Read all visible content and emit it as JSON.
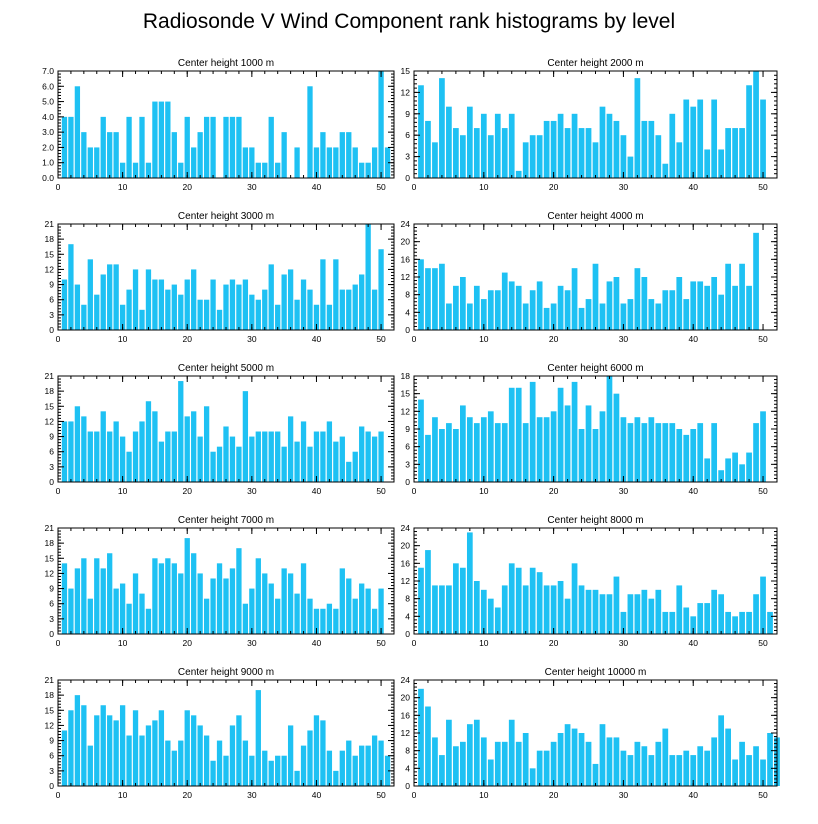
{
  "title": "Radiosonde V Wind Component rank histograms by level",
  "colors": {
    "bar": "#1ec1f3",
    "axis": "#000000",
    "background": "#ffffff"
  },
  "chart_data": [
    {
      "type": "bar",
      "title": "Center height 1000 m",
      "xlim": [
        0,
        52
      ],
      "ylim": [
        0,
        7
      ],
      "xticks": [
        0,
        10,
        20,
        30,
        40,
        50
      ],
      "yticks": [
        0,
        1,
        2,
        3,
        4,
        5,
        6,
        7
      ],
      "ytick_labels": [
        "0.0",
        "1.0",
        "2.0",
        "3.0",
        "4.0",
        "5.0",
        "6.0",
        "7.0"
      ],
      "values": [
        4,
        4,
        6,
        3,
        2,
        2,
        4,
        3,
        3,
        1,
        4,
        1,
        4,
        1,
        5,
        5,
        5,
        3,
        1,
        4,
        2,
        3,
        4,
        4,
        0,
        4,
        4,
        4,
        2,
        2,
        1,
        1,
        4,
        1,
        3,
        0,
        2,
        0,
        6,
        2,
        3,
        2,
        2,
        3,
        3,
        2,
        1,
        1,
        2,
        7,
        2
      ]
    },
    {
      "type": "bar",
      "title": "Center height 2000 m",
      "xlim": [
        0,
        52
      ],
      "ylim": [
        0,
        15
      ],
      "xticks": [
        0,
        10,
        20,
        30,
        40,
        50
      ],
      "yticks": [
        0,
        3,
        6,
        9,
        12,
        15
      ],
      "ytick_labels": [
        "0",
        "3",
        "6",
        "9",
        "12",
        "15"
      ],
      "values": [
        13,
        8,
        5,
        14,
        10,
        7,
        6,
        10,
        7,
        9,
        6,
        9,
        7,
        9,
        1,
        5,
        6,
        6,
        8,
        8,
        9,
        7,
        9,
        7,
        7,
        5,
        10,
        9,
        8,
        6,
        3,
        14,
        8,
        8,
        6,
        2,
        9,
        5,
        11,
        10,
        11,
        4,
        11,
        4,
        7,
        7,
        7,
        13,
        15,
        11,
        0
      ]
    },
    {
      "type": "bar",
      "title": "Center height 3000 m",
      "xlim": [
        0,
        52
      ],
      "ylim": [
        0,
        21
      ],
      "xticks": [
        0,
        10,
        20,
        30,
        40,
        50
      ],
      "yticks": [
        0,
        3,
        6,
        9,
        12,
        15,
        18,
        21
      ],
      "ytick_labels": [
        "0",
        "3",
        "6",
        "9",
        "12",
        "15",
        "18",
        "21"
      ],
      "values": [
        10,
        17,
        9,
        5,
        14,
        7,
        11,
        13,
        13,
        5,
        8,
        12,
        4,
        12,
        10,
        10,
        8,
        9,
        7,
        10,
        12,
        6,
        6,
        10,
        4,
        9,
        10,
        9,
        10,
        7,
        6,
        8,
        13,
        5,
        11,
        12,
        6,
        10,
        8,
        5,
        14,
        5,
        14,
        8,
        8,
        9,
        11,
        21,
        8,
        16,
        0
      ]
    },
    {
      "type": "bar",
      "title": "Center height 4000 m",
      "xlim": [
        0,
        52
      ],
      "ylim": [
        0,
        24
      ],
      "xticks": [
        0,
        10,
        20,
        30,
        40,
        50
      ],
      "yticks": [
        0,
        4,
        8,
        12,
        16,
        20,
        24
      ],
      "ytick_labels": [
        "0",
        "4",
        "8",
        "12",
        "16",
        "20",
        "24"
      ],
      "values": [
        16,
        14,
        14,
        15,
        6,
        10,
        12,
        6,
        10,
        7,
        9,
        9,
        13,
        11,
        10,
        6,
        9,
        11,
        5,
        6,
        10,
        9,
        14,
        5,
        7,
        15,
        6,
        11,
        12,
        6,
        7,
        14,
        12,
        7,
        6,
        9,
        9,
        12,
        7,
        11,
        11,
        10,
        12,
        8,
        15,
        10,
        15,
        10,
        22,
        0,
        0
      ]
    },
    {
      "type": "bar",
      "title": "Center height 5000 m",
      "xlim": [
        0,
        52
      ],
      "ylim": [
        0,
        21
      ],
      "xticks": [
        0,
        10,
        20,
        30,
        40,
        50
      ],
      "yticks": [
        0,
        3,
        6,
        9,
        12,
        15,
        18,
        21
      ],
      "ytick_labels": [
        "0",
        "3",
        "6",
        "9",
        "12",
        "15",
        "18",
        "21"
      ],
      "values": [
        12,
        12,
        15,
        13,
        10,
        10,
        14,
        10,
        12,
        9,
        6,
        10,
        12,
        16,
        14,
        8,
        10,
        10,
        20,
        13,
        14,
        9,
        15,
        6,
        7,
        11,
        9,
        7,
        18,
        9,
        10,
        10,
        10,
        10,
        7,
        13,
        8,
        12,
        7,
        10,
        10,
        12,
        8,
        9,
        4,
        6,
        11,
        10,
        9,
        10,
        0
      ]
    },
    {
      "type": "bar",
      "title": "Center height 6000 m",
      "xlim": [
        0,
        52
      ],
      "ylim": [
        0,
        18
      ],
      "xticks": [
        0,
        10,
        20,
        30,
        40,
        50
      ],
      "yticks": [
        0,
        3,
        6,
        9,
        12,
        15,
        18
      ],
      "ytick_labels": [
        "0",
        "3",
        "6",
        "9",
        "12",
        "15",
        "18"
      ],
      "values": [
        14,
        8,
        11,
        9,
        10,
        9,
        13,
        11,
        10,
        11,
        12,
        10,
        10,
        16,
        16,
        10,
        17,
        11,
        11,
        12,
        16,
        13,
        17,
        9,
        13,
        9,
        12,
        18,
        15,
        11,
        10,
        11,
        10,
        11,
        10,
        10,
        10,
        9,
        8,
        9,
        10,
        4,
        10,
        2,
        4,
        5,
        3,
        5,
        10,
        12,
        0
      ]
    },
    {
      "type": "bar",
      "title": "Center height 7000 m",
      "xlim": [
        0,
        52
      ],
      "ylim": [
        0,
        21
      ],
      "xticks": [
        0,
        10,
        20,
        30,
        40,
        50
      ],
      "yticks": [
        0,
        3,
        6,
        9,
        12,
        15,
        18,
        21
      ],
      "ytick_labels": [
        "0",
        "3",
        "6",
        "9",
        "12",
        "15",
        "18",
        "21"
      ],
      "values": [
        14,
        9,
        13,
        15,
        7,
        15,
        13,
        16,
        9,
        10,
        6,
        12,
        8,
        5,
        15,
        14,
        15,
        14,
        12,
        19,
        16,
        12,
        7,
        11,
        14,
        11,
        13,
        17,
        6,
        9,
        15,
        12,
        10,
        7,
        13,
        12,
        8,
        14,
        7,
        5,
        5,
        6,
        5,
        13,
        11,
        7,
        10,
        9,
        5,
        9,
        0
      ]
    },
    {
      "type": "bar",
      "title": "Center height 8000 m",
      "xlim": [
        0,
        52
      ],
      "ylim": [
        0,
        24
      ],
      "xticks": [
        0,
        10,
        20,
        30,
        40,
        50
      ],
      "yticks": [
        0,
        4,
        8,
        12,
        16,
        20,
        24
      ],
      "ytick_labels": [
        "0",
        "4",
        "8",
        "12",
        "16",
        "20",
        "24"
      ],
      "values": [
        15,
        19,
        11,
        11,
        11,
        16,
        15,
        23,
        12,
        10,
        8,
        6,
        11,
        16,
        15,
        11,
        15,
        14,
        11,
        11,
        12,
        8,
        16,
        11,
        10,
        10,
        9,
        9,
        13,
        5,
        9,
        9,
        10,
        8,
        10,
        5,
        5,
        11,
        6,
        4,
        7,
        7,
        10,
        9,
        5,
        4,
        5,
        5,
        9,
        13,
        5
      ]
    },
    {
      "type": "bar",
      "title": "Center height 9000 m",
      "xlim": [
        0,
        52
      ],
      "ylim": [
        0,
        21
      ],
      "xticks": [
        0,
        10,
        20,
        30,
        40,
        50
      ],
      "yticks": [
        0,
        3,
        6,
        9,
        12,
        15,
        18,
        21
      ],
      "ytick_labels": [
        "0",
        "3",
        "6",
        "9",
        "12",
        "15",
        "18",
        "21"
      ],
      "values": [
        11,
        15,
        18,
        16,
        8,
        14,
        16,
        14,
        13,
        16,
        10,
        15,
        10,
        12,
        13,
        15,
        9,
        7,
        9,
        15,
        14,
        12,
        10,
        5,
        9,
        6,
        12,
        14,
        9,
        6,
        19,
        7,
        5,
        6,
        6,
        12,
        3,
        8,
        11,
        14,
        13,
        7,
        3,
        7,
        9,
        6,
        8,
        8,
        10,
        9,
        6
      ]
    },
    {
      "type": "bar",
      "title": "Center height 10000 m",
      "xlim": [
        0,
        52
      ],
      "ylim": [
        0,
        24
      ],
      "xticks": [
        0,
        10,
        20,
        30,
        40,
        50
      ],
      "yticks": [
        0,
        4,
        8,
        12,
        16,
        20,
        24
      ],
      "ytick_labels": [
        "0",
        "4",
        "8",
        "12",
        "16",
        "20",
        "24"
      ],
      "values": [
        22,
        18,
        11,
        7,
        15,
        9,
        10,
        14,
        15,
        11,
        6,
        10,
        10,
        15,
        10,
        12,
        4,
        8,
        8,
        10,
        12,
        14,
        13,
        12,
        10,
        5,
        14,
        11,
        11,
        8,
        7,
        10,
        9,
        7,
        10,
        13,
        7,
        7,
        8,
        7,
        9,
        8,
        11,
        16,
        13,
        6,
        10,
        7,
        9,
        6,
        12,
        11
      ]
    }
  ]
}
